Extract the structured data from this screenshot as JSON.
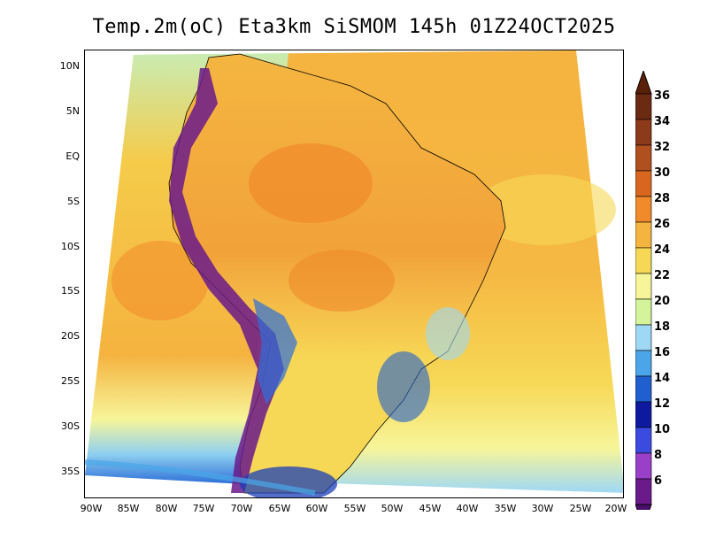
{
  "title": "Temp.2m(oC) Eta3km SiSMOM 145h 01Z24OCT2025",
  "map": {
    "lat_labels": [
      "10N",
      "5N",
      "EQ",
      "5S",
      "10S",
      "15S",
      "20S",
      "25S",
      "30S",
      "35S"
    ],
    "lon_labels": [
      "90W",
      "85W",
      "80W",
      "75W",
      "70W",
      "65W",
      "60W",
      "55W",
      "50W",
      "45W",
      "40W",
      "35W",
      "30W",
      "25W",
      "20W"
    ],
    "ocean_color": "#f5b842",
    "land_color": "#f0a94a"
  },
  "colorbar": {
    "labels": [
      "36",
      "34",
      "32",
      "30",
      "28",
      "26",
      "24",
      "22",
      "20",
      "18",
      "16",
      "14",
      "12",
      "10",
      "8",
      "6"
    ],
    "colors": [
      "#6b2a12",
      "#8c3a1a",
      "#b0501f",
      "#d8661e",
      "#f08a2a",
      "#f5b33f",
      "#f7d856",
      "#f7f59a",
      "#d4f39a",
      "#9ed8f5",
      "#4aa6e8",
      "#1f5fd0",
      "#0d1aa0",
      "#3b4be0",
      "#9a3fc8",
      "#6a1a8a"
    ],
    "top_color": "#5a2008",
    "bottom_color": "#4a0f6a"
  }
}
